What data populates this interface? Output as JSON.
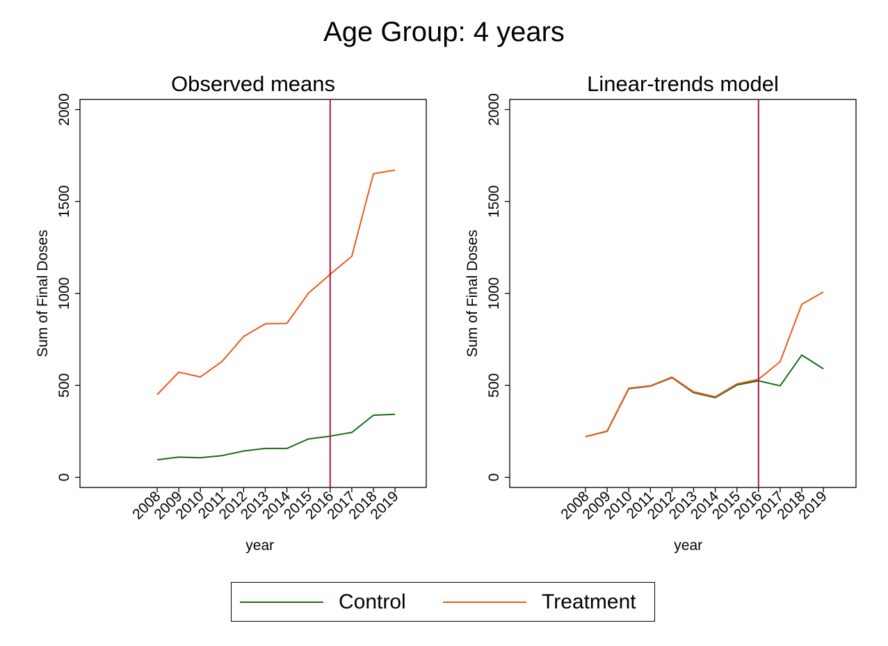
{
  "figure": {
    "title": "Age Group: 4 years",
    "colors": {
      "control": "#1a6b1a",
      "treatment": "#ea5a1c",
      "reference_line": "#a8173e"
    }
  },
  "legend": {
    "items": [
      {
        "label": "Control",
        "color": "#1a6b1a"
      },
      {
        "label": "Treatment",
        "color": "#ea5a1c"
      }
    ]
  },
  "chart_data": [
    {
      "type": "line",
      "title": "Observed means",
      "xlabel": "year",
      "ylabel": "Sum of Final Doses",
      "x": [
        2008,
        2009,
        2010,
        2011,
        2012,
        2013,
        2014,
        2015,
        2016,
        2017,
        2018,
        2019
      ],
      "ylim": [
        -55,
        2055
      ],
      "yticks": [
        0,
        500,
        1000,
        1500,
        2000
      ],
      "reference_line_x": 2016,
      "grid": false,
      "legend_position": "bottom",
      "series": [
        {
          "name": "Control",
          "color": "#1a6b1a",
          "values": [
            95,
            110,
            107,
            118,
            143,
            157,
            157,
            209,
            224,
            244,
            338,
            343
          ]
        },
        {
          "name": "Treatment",
          "color": "#ea5a1c",
          "values": [
            450,
            572,
            546,
            630,
            766,
            835,
            837,
            1002,
            1104,
            1202,
            1651,
            1671
          ]
        }
      ]
    },
    {
      "type": "line",
      "title": "Linear-trends model",
      "xlabel": "year",
      "ylabel": "Sum of Final Doses",
      "x": [
        2008,
        2009,
        2010,
        2011,
        2012,
        2013,
        2014,
        2015,
        2016,
        2017,
        2018,
        2019
      ],
      "ylim": [
        -55,
        2055
      ],
      "yticks": [
        0,
        500,
        1000,
        1500,
        2000
      ],
      "reference_line_x": 2016,
      "grid": false,
      "legend_position": "bottom",
      "series": [
        {
          "name": "Control",
          "color": "#1a6b1a",
          "values": [
            221,
            250,
            482,
            496,
            542,
            460,
            433,
            502,
            525,
            498,
            665,
            590
          ]
        },
        {
          "name": "Treatment",
          "color": "#ea5a1c",
          "values": [
            221,
            252,
            485,
            498,
            545,
            465,
            438,
            508,
            533,
            629,
            941,
            1008
          ]
        }
      ]
    }
  ]
}
